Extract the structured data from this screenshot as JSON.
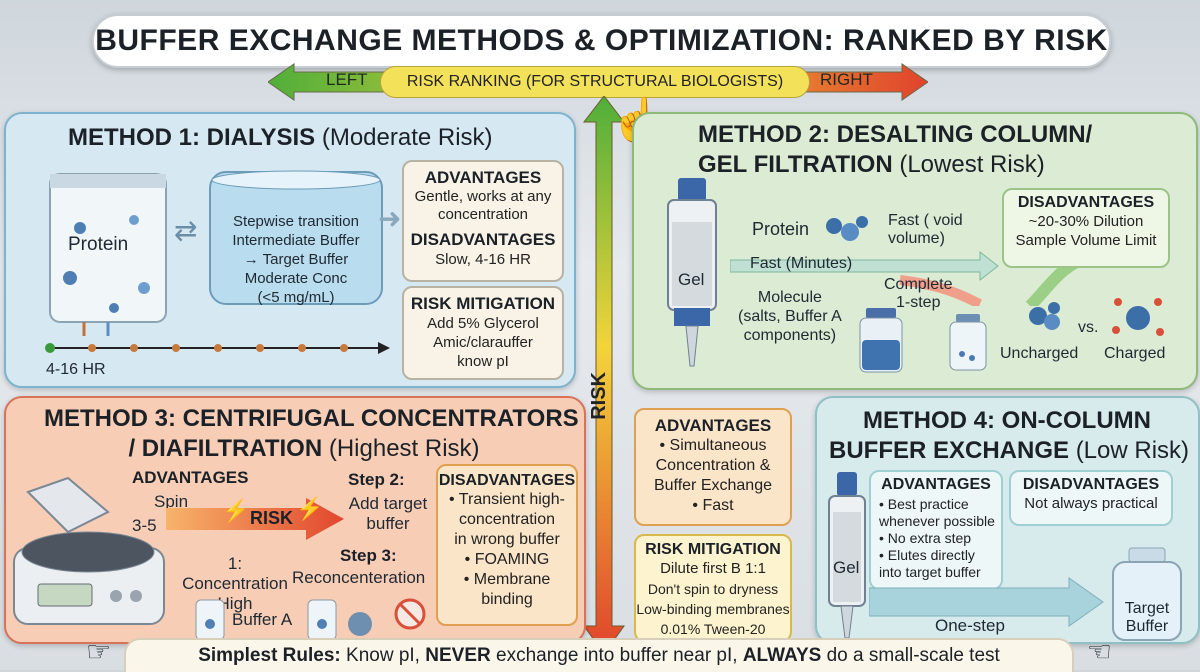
{
  "title": "BUFFER EXCHANGE METHODS & OPTIMIZATION: RANKED BY RISK",
  "risk_ranking": {
    "left": "LEFT",
    "center": "RISK RANKING (FOR STRUCTURAL BIOLOGISTS)",
    "right": "RIGHT",
    "vertical": "RISK"
  },
  "colors": {
    "low": "#4fae3a",
    "mid": "#f2d43a",
    "high": "#e0432c"
  },
  "method1": {
    "title": "METHOD 1: DIALYSIS",
    "risk": "(Moderate Risk)",
    "bag_label": "Protein",
    "beaker_text": [
      "Stepwise transition",
      "Intermediate Buffer",
      "→ Target Buffer",
      "Moderate Conc",
      "(<5 mg/mL)"
    ],
    "time_label": "4-16 HR",
    "advantages_title": "ADVANTAGES",
    "advantages_text": [
      "Gentle, works at any",
      "concentration"
    ],
    "disadvantages_title": "DISADVANTAGES",
    "disadvantages_text": "Slow, 4-16 HR",
    "mitigation_title": "RISK MITIGATION",
    "mitigation_text": [
      "Add 5% Glycerol",
      "Amic/clarauffer",
      "know pI"
    ]
  },
  "method2": {
    "title_line1": "METHOD 2: DESALTING COLUMN/",
    "title_line2": "GEL FILTRATION",
    "risk": "(Lowest Risk)",
    "column_label": "Gel",
    "protein_label": "Protein",
    "fast_void": [
      "Fast ( void",
      "volume)"
    ],
    "fast_minutes": "Fast (Minutes)",
    "complete": [
      "Complete",
      "1-step"
    ],
    "molecule": [
      "Molecule",
      "(salts, Buffer A",
      "components)"
    ],
    "disadvantages_title": "DISADVANTAGES",
    "disadvantages_text": [
      "~20-30% Dilution",
      "Sample Volume Limit"
    ],
    "uncharged": "Uncharged",
    "vs": "vs.",
    "charged": "Charged"
  },
  "method3": {
    "title_line1": "METHOD 3: CENTRIFUGAL CONCENTRATORS",
    "title_line2": "/ DIAFILTRATION",
    "risk": "(Highest Risk)",
    "advantages_title": "ADVANTAGES",
    "spin": "Spin",
    "spin_n": "3-5",
    "risk_label": "RISK",
    "step2_title": "Step 2:",
    "step2_text": [
      "Add target",
      "buffer"
    ],
    "step1": [
      "1: Concentration",
      "High"
    ],
    "step3_title": "Step 3:",
    "step3_text": "Reconcenteration",
    "buffer_a": "Buffer A",
    "disadvantages_title": "DISADVANTAGES",
    "disadvantages_items": [
      "• Transient high-",
      "concentration",
      "in wrong buffer",
      "• FOAMING",
      "• Membrane",
      "binding"
    ]
  },
  "middle": {
    "advantages_title": "ADVANTAGES",
    "advantages_items": [
      "• Simultaneous",
      "Concentration &",
      "Buffer Exchange",
      "• Fast"
    ],
    "mitigation_title": "RISK MITIGATION",
    "mitigation_items": [
      "Dilute first B 1:1",
      "Don't spin to dryness",
      "Low-binding membranes",
      "0.01% Tween-20"
    ]
  },
  "method4": {
    "title_line1": "METHOD 4: ON-COLUMN",
    "title_line2": "BUFFER EXCHANGE",
    "risk": "(Low Risk)",
    "advantages_title": "ADVANTAGES",
    "advantages_items": [
      "• Best practice",
      "whenever possible",
      "• No extra step",
      "• Elutes directly",
      "into target buffer"
    ],
    "disadvantages_title": "DISADVANTAGES",
    "disadvantages_text": "Not always practical",
    "column_label": "Gel",
    "one_step": "One-step",
    "target_buffer": [
      "Target",
      "Buffer"
    ]
  },
  "bottom": {
    "lead": "Simplest Rules:",
    "part1": "Know pI,",
    "never": "NEVER",
    "part2": "exchange into buffer near pI,",
    "always": "ALWAYS",
    "part3": "do a small-scale test"
  }
}
